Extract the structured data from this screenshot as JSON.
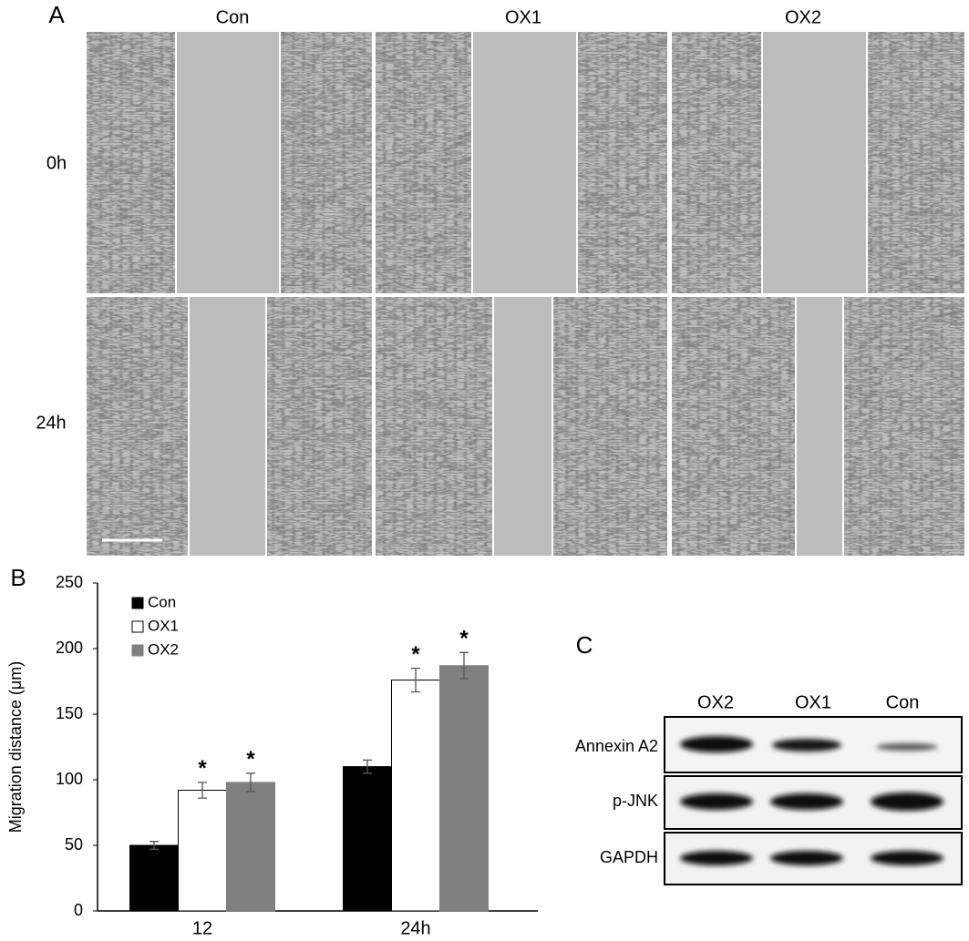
{
  "panel_labels": [
    "A",
    "B",
    "C"
  ],
  "wound_assay": {
    "columns": [
      "Con",
      "OX1",
      "OX2"
    ],
    "rows": [
      "0h",
      "24h"
    ]
  },
  "chart_data": {
    "type": "bar",
    "ylabel": "Migration distance (μm)",
    "categories": [
      "12",
      "24h"
    ],
    "series": [
      {
        "name": "Con",
        "color": "#000000",
        "values": [
          50,
          110
        ],
        "errors": [
          3,
          5
        ],
        "marks": [
          null,
          null
        ]
      },
      {
        "name": "OX1",
        "color": "#ffffff",
        "values": [
          92,
          176
        ],
        "errors": [
          6,
          9
        ],
        "marks": [
          "*",
          "*"
        ]
      },
      {
        "name": "OX2",
        "color": "#808080",
        "values": [
          98,
          187
        ],
        "errors": [
          7,
          10
        ],
        "marks": [
          "*",
          "*"
        ]
      }
    ],
    "ylim": [
      0,
      250
    ],
    "yticks": [
      0,
      50,
      100,
      150,
      200,
      250
    ],
    "grid": false,
    "legend": "upper left"
  },
  "western_blot": {
    "lanes": [
      "OX2",
      "OX1",
      "Con"
    ],
    "proteins": [
      "Annexin A2",
      "p-JNK",
      "GAPDH"
    ]
  }
}
